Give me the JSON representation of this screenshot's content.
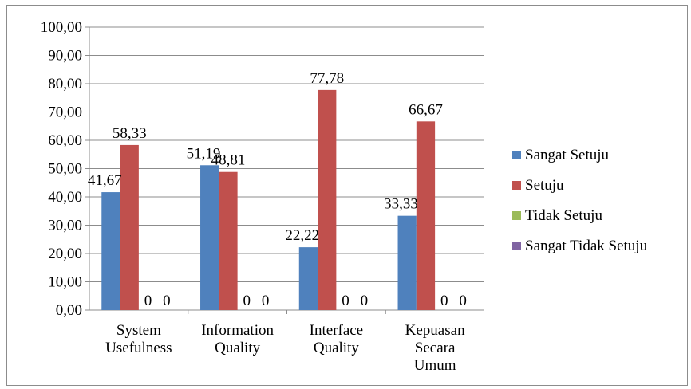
{
  "chart_data": {
    "type": "bar",
    "categories": [
      [
        "System",
        "Usefulness"
      ],
      [
        "Information",
        "Quality"
      ],
      [
        "Interface",
        "Quality"
      ],
      [
        "Kepuasan",
        "Secara",
        "Umum"
      ]
    ],
    "series": [
      {
        "name": "Sangat Setuju",
        "color": "#4f81bd",
        "values": [
          41.67,
          51.19,
          22.22,
          33.33
        ],
        "labels": [
          "41,67",
          "51,19",
          "22,22",
          "33,33"
        ]
      },
      {
        "name": "Setuju",
        "color": "#c0504d",
        "values": [
          58.33,
          48.81,
          77.78,
          66.67
        ],
        "labels": [
          "58,33",
          "48,81",
          "77,78",
          "66,67"
        ]
      },
      {
        "name": "Tidak Setuju",
        "color": "#9bbb59",
        "values": [
          0,
          0,
          0,
          0
        ],
        "labels": [
          "0",
          "0",
          "0",
          "0"
        ]
      },
      {
        "name": "Sangat Tidak Setuju",
        "color": "#8064a2",
        "values": [
          0,
          0,
          0,
          0
        ],
        "labels": [
          "0",
          "0",
          "0",
          "0"
        ]
      }
    ],
    "ylim": [
      0,
      100
    ],
    "yticks": [
      "0,00",
      "10,00",
      "20,00",
      "30,00",
      "40,00",
      "50,00",
      "60,00",
      "70,00",
      "80,00",
      "90,00",
      "100,00"
    ],
    "grid": true,
    "legend": "right",
    "title": "",
    "xlabel": "",
    "ylabel": ""
  }
}
